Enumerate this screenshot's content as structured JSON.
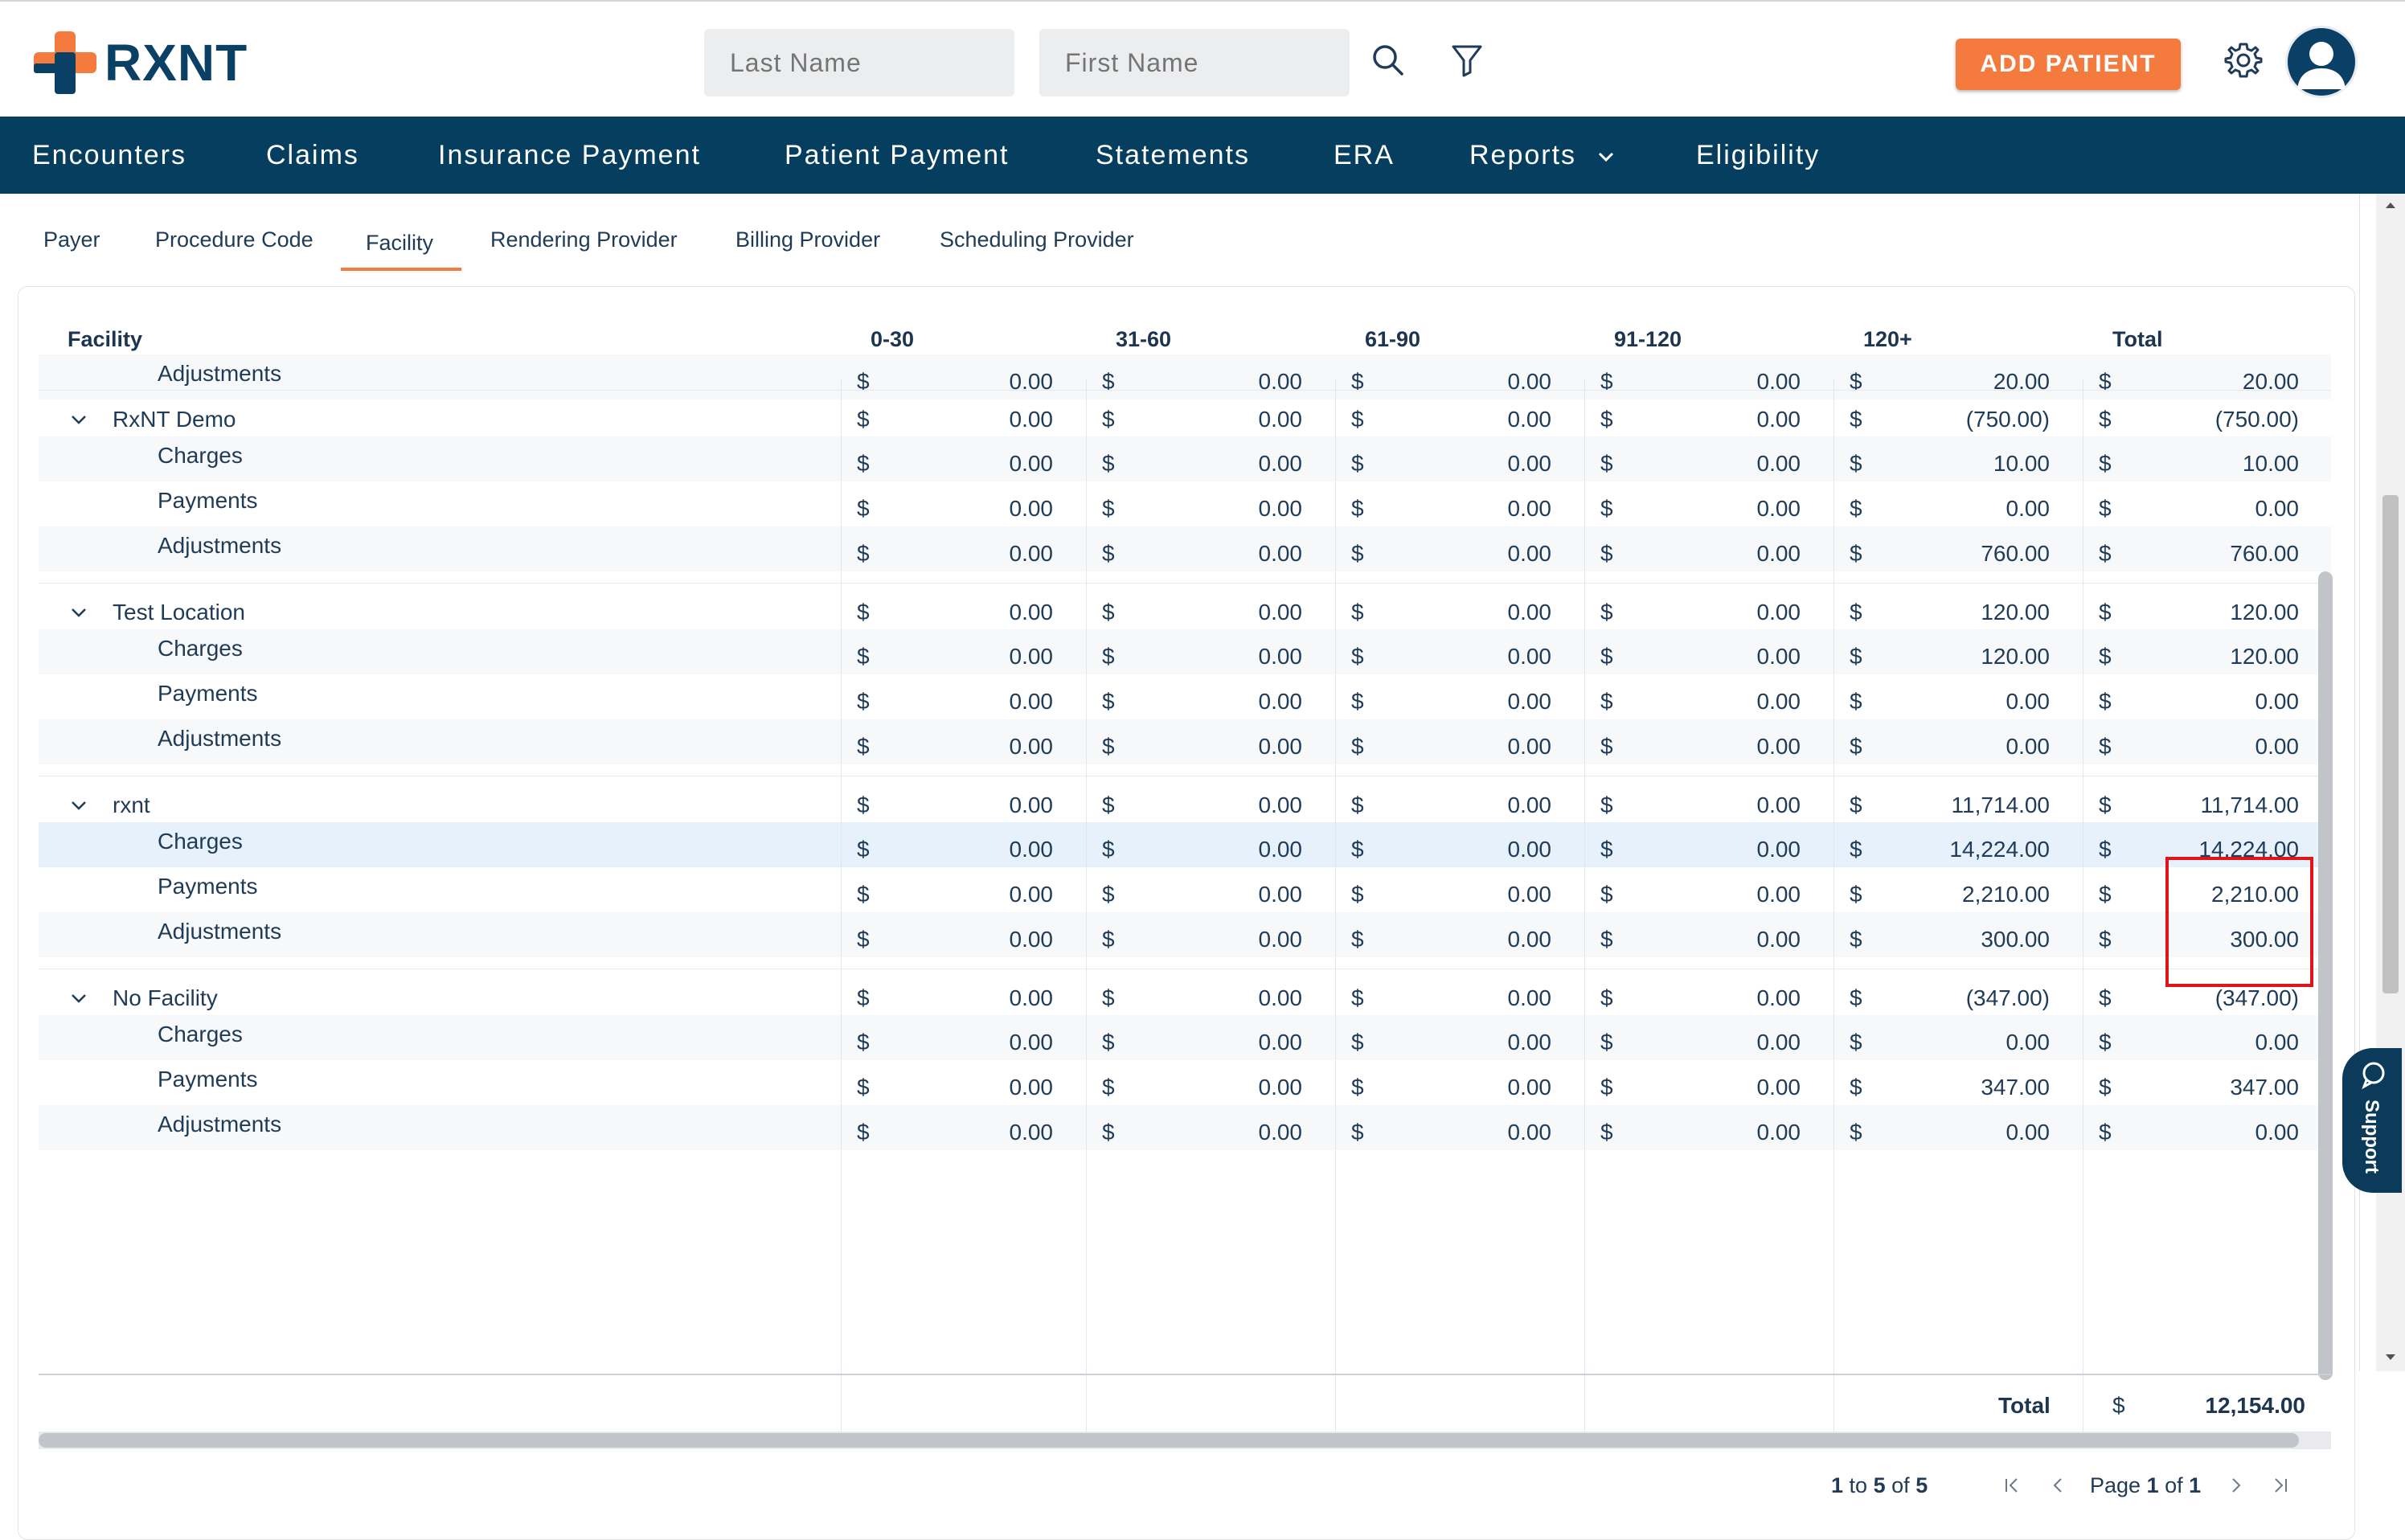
{
  "brand": {
    "name": "RXNT",
    "accent": "#f47a3e",
    "navy": "#063e5f"
  },
  "header": {
    "last_name_placeholder": "Last Name",
    "first_name_placeholder": "First Name",
    "add_patient_label": "ADD PATIENT"
  },
  "nav": {
    "items": [
      "Encounters",
      "Claims",
      "Insurance Payment",
      "Patient Payment",
      "Statements",
      "ERA",
      "Reports",
      "Eligibility"
    ]
  },
  "subtabs": [
    "Payer",
    "Procedure Code",
    "Facility",
    "Rendering Provider",
    "Billing Provider",
    "Scheduling Provider"
  ],
  "active_subtab": "Facility",
  "table": {
    "headers": [
      "Facility",
      "0-30",
      "31-60",
      "61-90",
      "91-120",
      "120+",
      "Total"
    ],
    "currency": "$",
    "rows": [
      {
        "kind": "child",
        "label": "Adjustments",
        "values": [
          "0.00",
          "0.00",
          "0.00",
          "0.00",
          "20.00",
          "20.00"
        ]
      },
      {
        "kind": "parent",
        "label": "RxNT Demo",
        "values": [
          "0.00",
          "0.00",
          "0.00",
          "0.00",
          "(750.00)",
          "(750.00)"
        ]
      },
      {
        "kind": "child",
        "label": "Charges",
        "values": [
          "0.00",
          "0.00",
          "0.00",
          "0.00",
          "10.00",
          "10.00"
        ]
      },
      {
        "kind": "child",
        "label": "Payments",
        "values": [
          "0.00",
          "0.00",
          "0.00",
          "0.00",
          "0.00",
          "0.00"
        ]
      },
      {
        "kind": "child",
        "label": "Adjustments",
        "values": [
          "0.00",
          "0.00",
          "0.00",
          "0.00",
          "760.00",
          "760.00"
        ]
      },
      {
        "kind": "parent",
        "label": "Test Location",
        "values": [
          "0.00",
          "0.00",
          "0.00",
          "0.00",
          "120.00",
          "120.00"
        ]
      },
      {
        "kind": "child",
        "label": "Charges",
        "values": [
          "0.00",
          "0.00",
          "0.00",
          "0.00",
          "120.00",
          "120.00"
        ]
      },
      {
        "kind": "child",
        "label": "Payments",
        "values": [
          "0.00",
          "0.00",
          "0.00",
          "0.00",
          "0.00",
          "0.00"
        ]
      },
      {
        "kind": "child",
        "label": "Adjustments",
        "values": [
          "0.00",
          "0.00",
          "0.00",
          "0.00",
          "0.00",
          "0.00"
        ]
      },
      {
        "kind": "parent",
        "label": "rxnt",
        "values": [
          "0.00",
          "0.00",
          "0.00",
          "0.00",
          "11,714.00",
          "11,714.00"
        ]
      },
      {
        "kind": "child",
        "label": "Charges",
        "values": [
          "0.00",
          "0.00",
          "0.00",
          "0.00",
          "14,224.00",
          "14,224.00"
        ],
        "highlight": true
      },
      {
        "kind": "child",
        "label": "Payments",
        "values": [
          "0.00",
          "0.00",
          "0.00",
          "0.00",
          "2,210.00",
          "2,210.00"
        ]
      },
      {
        "kind": "child",
        "label": "Adjustments",
        "values": [
          "0.00",
          "0.00",
          "0.00",
          "0.00",
          "300.00",
          "300.00"
        ]
      },
      {
        "kind": "parent",
        "label": "No Facility",
        "values": [
          "0.00",
          "0.00",
          "0.00",
          "0.00",
          "(347.00)",
          "(347.00)"
        ]
      },
      {
        "kind": "child",
        "label": "Charges",
        "values": [
          "0.00",
          "0.00",
          "0.00",
          "0.00",
          "0.00",
          "0.00"
        ]
      },
      {
        "kind": "child",
        "label": "Payments",
        "values": [
          "0.00",
          "0.00",
          "0.00",
          "0.00",
          "347.00",
          "347.00"
        ]
      },
      {
        "kind": "child",
        "label": "Adjustments",
        "values": [
          "0.00",
          "0.00",
          "0.00",
          "0.00",
          "0.00",
          "0.00"
        ]
      }
    ],
    "total_label": "Total",
    "total_value": "12,154.00"
  },
  "pager": {
    "range_start": "1",
    "range_to": "to",
    "range_end": "5",
    "of": "of",
    "total": "5",
    "page_word": "Page",
    "page": "1",
    "page_of": "of",
    "pages": "1"
  },
  "support": {
    "label": "Support"
  }
}
